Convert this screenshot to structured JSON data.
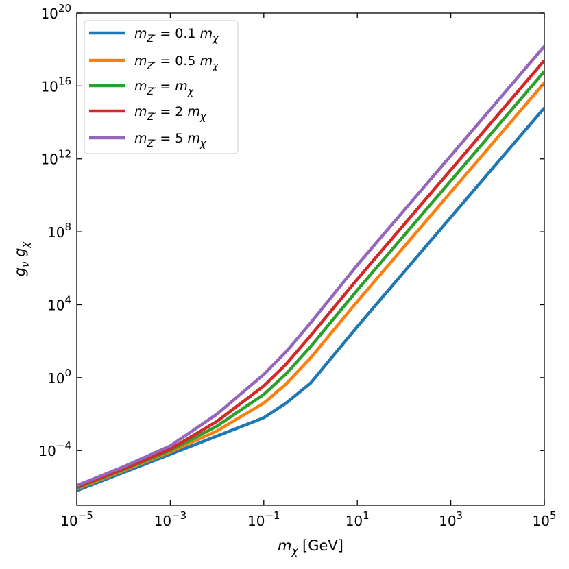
{
  "chart_data": {
    "type": "line",
    "title": "",
    "x_scale": "log",
    "y_scale": "log",
    "xlim": [
      1e-05,
      100000
    ],
    "ylim": [
      1e-07,
      1e+20
    ],
    "x_ticks": [
      {
        "value": 1e-05,
        "base": "10",
        "exp": "−5"
      },
      {
        "value": 0.001,
        "base": "10",
        "exp": "−3"
      },
      {
        "value": 0.1,
        "base": "10",
        "exp": "−1"
      },
      {
        "value": 10,
        "base": "10",
        "exp": "1"
      },
      {
        "value": 1000,
        "base": "10",
        "exp": "3"
      },
      {
        "value": 100000,
        "base": "10",
        "exp": "5"
      }
    ],
    "y_ticks": [
      {
        "value": 0.0001,
        "base": "10",
        "exp": "−4"
      },
      {
        "value": 1,
        "base": "10",
        "exp": "0"
      },
      {
        "value": 10000,
        "base": "10",
        "exp": "4"
      },
      {
        "value": 100000000.0,
        "base": "10",
        "exp": "8"
      },
      {
        "value": 1000000000000.0,
        "base": "10",
        "exp": "12"
      },
      {
        "value": 1e+16,
        "base": "10",
        "exp": "16"
      },
      {
        "value": 1e+20,
        "base": "10",
        "exp": "20"
      }
    ],
    "xlabel": {
      "sym": "m",
      "sub": "χ",
      "unit": "[GeV]"
    },
    "ylabel": {
      "sym1": "g",
      "sub1": "ν",
      "sym2": "g",
      "sub2": "χ"
    },
    "grid": false,
    "legend_position": "upper-left",
    "series": [
      {
        "name": "m_{Z'} = 0.1 m_χ",
        "legend": {
          "coef": "0.1"
        },
        "color": "#1f77b4",
        "x": [
          1e-05,
          0.0001,
          0.001,
          0.01,
          0.1,
          0.3,
          1,
          10,
          100,
          1000,
          10000,
          100000
        ],
        "y": [
          6.3e-07,
          6.3e-06,
          6.3e-05,
          0.00063,
          0.0063,
          0.04,
          0.5,
          630,
          630000,
          630000000,
          630000000000.0,
          630000000000000.0
        ]
      },
      {
        "name": "m_{Z'} = 0.5 m_χ",
        "legend": {
          "coef": "0.5"
        },
        "color": "#ff7f0e",
        "x": [
          1e-05,
          0.0001,
          0.001,
          0.01,
          0.1,
          0.3,
          1,
          10,
          100,
          1000,
          10000,
          100000
        ],
        "y": [
          8e-07,
          8e-06,
          8.5e-05,
          0.0012,
          0.04,
          0.45,
          12,
          15000,
          15000000,
          15000000000.0,
          15000000000000.0,
          1.5e+16
        ]
      },
      {
        "name": "m_{Z'} = m_χ",
        "legend": {
          "coef": ""
        },
        "color": "#2ca02c",
        "x": [
          1e-05,
          0.0001,
          0.001,
          0.01,
          0.1,
          0.3,
          1,
          10,
          100,
          1000,
          10000,
          100000
        ],
        "y": [
          9e-07,
          9e-06,
          0.0001,
          0.0022,
          0.12,
          1.6,
          50,
          63000,
          63000000,
          63000000000.0,
          63000000000000.0,
          6.3e+16
        ]
      },
      {
        "name": "m_{Z'} = 2 m_χ",
        "legend": {
          "coef": "2"
        },
        "color": "#d62728",
        "x": [
          1e-05,
          0.0001,
          0.001,
          0.01,
          0.1,
          0.3,
          1,
          10,
          100,
          1000,
          10000,
          100000
        ],
        "y": [
          1e-06,
          1e-05,
          0.00012,
          0.004,
          0.35,
          5.5,
          200,
          250000,
          250000000,
          250000000000.0,
          250000000000000.0,
          2.5e+17
        ]
      },
      {
        "name": "m_{Z'} = 5 m_χ",
        "legend": {
          "coef": "5"
        },
        "color": "#9467bd",
        "x": [
          1e-05,
          0.0001,
          0.001,
          0.01,
          0.1,
          0.3,
          1,
          10,
          100,
          1000,
          10000,
          100000
        ],
        "y": [
          1.2e-06,
          1.3e-05,
          0.00018,
          0.01,
          1.5,
          26,
          1000,
          1500000,
          1500000000,
          1500000000000.0,
          1500000000000000.0,
          1.5e+18
        ]
      }
    ]
  }
}
